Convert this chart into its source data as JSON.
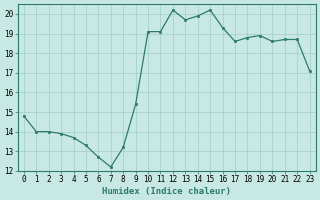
{
  "x": [
    0,
    1,
    2,
    3,
    4,
    5,
    6,
    7,
    8,
    9,
    10,
    11,
    12,
    13,
    14,
    15,
    16,
    17,
    18,
    19,
    20,
    21,
    22,
    23
  ],
  "y": [
    14.8,
    14.0,
    14.0,
    13.9,
    13.7,
    13.3,
    12.7,
    12.2,
    13.2,
    15.4,
    19.1,
    19.1,
    20.2,
    19.7,
    19.9,
    20.2,
    19.3,
    18.6,
    18.8,
    18.9,
    18.6,
    18.7,
    18.7,
    17.1
  ],
  "line_color": "#2d7a6e",
  "marker_color": "#2d7a6e",
  "bg_color": "#c8e8e4",
  "grid_color": "#a0cccc",
  "xlabel": "Humidex (Indice chaleur)",
  "xlim": [
    -0.5,
    23.5
  ],
  "ylim": [
    12,
    20.5
  ],
  "yticks": [
    12,
    13,
    14,
    15,
    16,
    17,
    18,
    19,
    20
  ],
  "xticks": [
    0,
    1,
    2,
    3,
    4,
    5,
    6,
    7,
    8,
    9,
    10,
    11,
    12,
    13,
    14,
    15,
    16,
    17,
    18,
    19,
    20,
    21,
    22,
    23
  ],
  "label_fontsize": 6.5,
  "tick_fontsize": 5.5
}
